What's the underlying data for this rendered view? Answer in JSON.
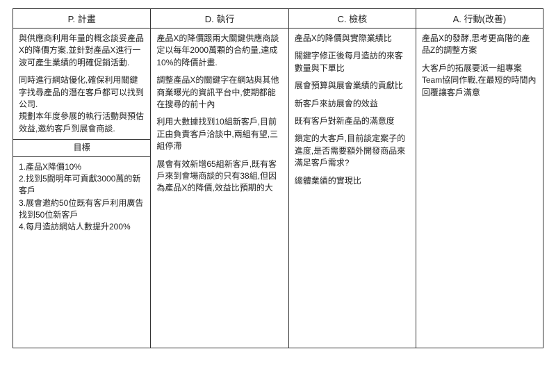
{
  "headers": {
    "p": "P. 計畫",
    "d": "D. 執行",
    "c": "C. 檢核",
    "a": "A. 行動(改善)"
  },
  "plan": {
    "p1": "與供應商利用年量的概念談妥產品X的降價方案,並針對產品X進行一波可產生業績的明確促銷活動.",
    "p2": "同時進行網站優化,確保利用關鍵字找尋產品的潛在客戶都可以找到公司.",
    "p3": "規劃本年度參展的執行活動與預估效益,邀約客戶到展會商談.",
    "goal_header": "目標",
    "g1": "1.產品X降價10%",
    "g2": "2.找到5間明年可貢獻3000萬的新客戶",
    "g3": "3.展會邀約50位既有客戶利用廣告找到50位新客戶",
    "g4": "4.每月造訪網站人數提升200%"
  },
  "do": {
    "d1": "產品X的降價跟兩大關鍵供應商談定以每年2000萬顆的合約量,達成10%的降價計畫.",
    "d2": "調整產品X的關鍵字在網站與其他商業曝光的資訊平台中,使期都能在搜尋的前十內",
    "d3": "利用大數據找到10組新客戶,目前正由負責客戶洽談中,兩組有望,三組停滯",
    "d4": "展會有效新增65組新客戶,既有客戶來到會場商談的只有38組,但因為產品X的降價,效益比預期的大"
  },
  "check": {
    "c1": "產品X的降價與實際業績比",
    "c2": "關鍵字修正後每月造訪的來客數量與下單比",
    "c3": "展會預算與展會業績的貢獻比",
    "c4": "新客戶來訪展會的效益",
    "c5": "既有客戶對新產品的滿意度",
    "c6": "鎖定的大客戶,目前談定案子的進度,是否需要額外開發商品來滿足客戶需求?",
    "c7": "總體業績的實現比"
  },
  "act": {
    "a1": "產品X的發酵,思考更高階的產品Z的調整方案",
    "a2": "大客戶的拓展要派一組專案Team協同作戰,在最短的時間內回覆讓客戶滿意"
  }
}
